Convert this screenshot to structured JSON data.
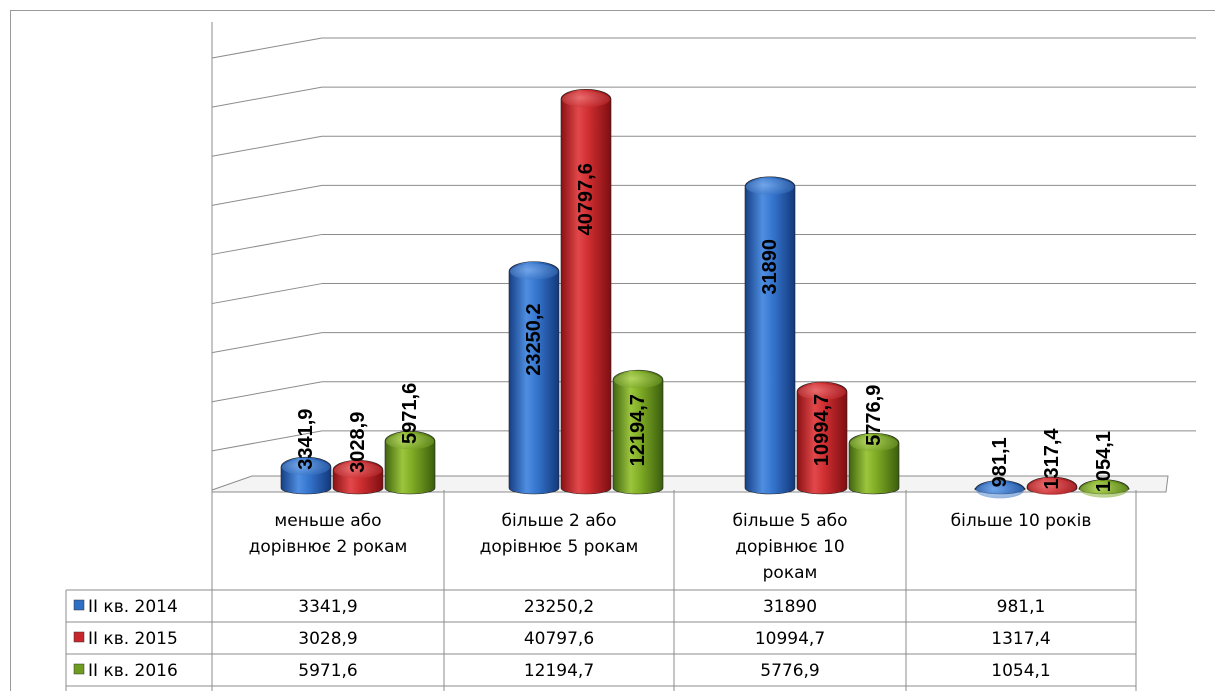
{
  "chart_data": {
    "type": "bar",
    "style": "3d-cylinder",
    "grid": true,
    "legend": "data-table-left",
    "categories": [
      [
        "меньше або",
        "дорівнює 2 рокам"
      ],
      [
        "більше 2 або",
        "дорівнює 5 рокам"
      ],
      [
        "більше 5 або",
        "дорівнює 10",
        "рокам"
      ],
      [
        "більше 10 років"
      ]
    ],
    "series": [
      {
        "name": "ІІ кв. 2014",
        "color": "#2e6ec4",
        "values": [
          3341.9,
          23250.2,
          31890,
          981.1
        ],
        "labels": [
          "3341,9",
          "23250,2",
          "31890",
          "981,1"
        ]
      },
      {
        "name": "ІІ кв. 2015",
        "color": "#c8262a",
        "values": [
          3028.9,
          40797.6,
          10994.7,
          1317.4
        ],
        "labels": [
          "3028,9",
          "40797,6",
          "10994,7",
          "1317,4"
        ]
      },
      {
        "name": "ІІ кв. 2016",
        "color": "#6e9c1e",
        "values": [
          5971.6,
          12194.7,
          5776.9,
          1054.1
        ],
        "labels": [
          "5971,6",
          "12194,7",
          "5776,9",
          "1054,1"
        ]
      }
    ],
    "ylim": [
      0,
      45000
    ]
  }
}
